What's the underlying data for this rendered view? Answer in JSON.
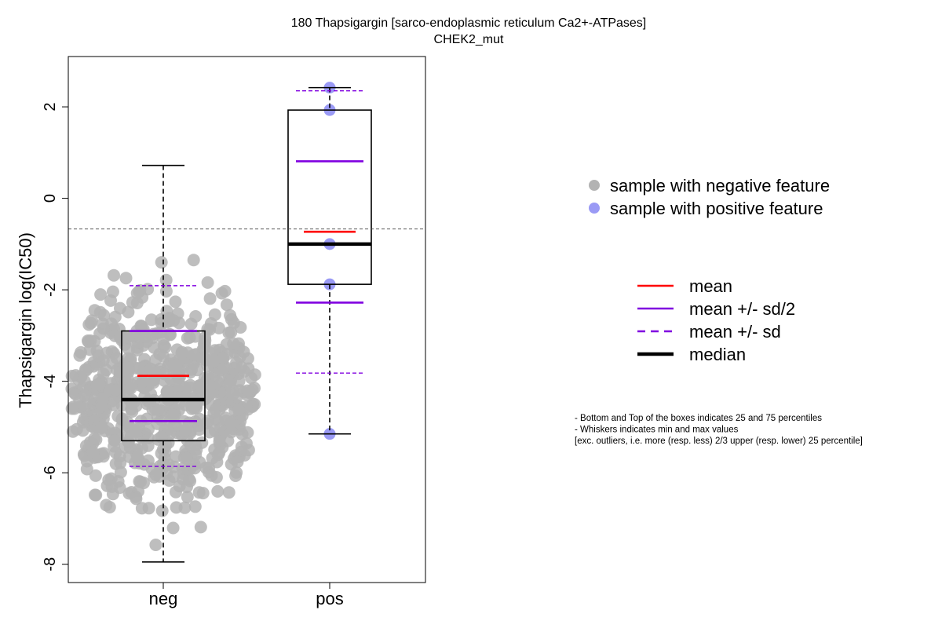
{
  "chart_data": {
    "type": "box",
    "title": "180 Thapsigargin [sarco-endoplasmic reticulum Ca2+-ATPases]",
    "subtitle": "CHEK2_mut",
    "ylabel": "Thapsigargin log(IC50)",
    "xlabel": "",
    "ylim": [
      -8.4,
      3.1
    ],
    "yticks": [
      2,
      0,
      -2,
      -4,
      -6,
      -8
    ],
    "reference_line": -0.67,
    "categories": [
      "neg",
      "pos"
    ],
    "groups": [
      {
        "name": "neg",
        "box": {
          "q1": -5.3,
          "median": -4.4,
          "q3": -2.9,
          "whisker_low": -7.95,
          "whisker_high": 0.72
        },
        "mean": -3.88,
        "mean_minus_half_sd": -4.87,
        "mean_plus_half_sd": -2.9,
        "mean_minus_sd": -5.86,
        "mean_plus_sd": -1.91,
        "n_points": 700,
        "point_color": "#b3b3b3"
      },
      {
        "name": "pos",
        "box": {
          "q1": -1.88,
          "median": -1.0,
          "q3": 1.93,
          "whisker_low": -5.15,
          "whisker_high": 2.42
        },
        "mean": -0.73,
        "mean_minus_half_sd": -2.28,
        "mean_plus_half_sd": 0.81,
        "mean_minus_sd": -3.82,
        "mean_plus_sd": 2.35,
        "points": [
          2.42,
          1.93,
          -1.0,
          -1.88,
          -5.15
        ],
        "point_color": "#9a9af5"
      }
    ],
    "legend_points": [
      {
        "label": "sample with negative feature",
        "color": "#b3b3b3"
      },
      {
        "label": "sample with positive feature",
        "color": "#9a9af5"
      }
    ],
    "legend_lines": [
      {
        "label": "mean",
        "color": "#ff0000",
        "style": "solid"
      },
      {
        "label": "mean +/- sd/2",
        "color": "#8000e0",
        "style": "solid"
      },
      {
        "label": "mean +/- sd",
        "color": "#8000e0",
        "style": "dashed"
      },
      {
        "label": "median",
        "color": "#000000",
        "style": "thick"
      }
    ],
    "notes": [
      "- Bottom and Top of the boxes indicates 25 and 75 percentiles",
      "- Whiskers indicates min and max values",
      "[exc. outliers, i.e. more (resp. less) 2/3 upper (resp. lower) 25 percentile]"
    ]
  }
}
